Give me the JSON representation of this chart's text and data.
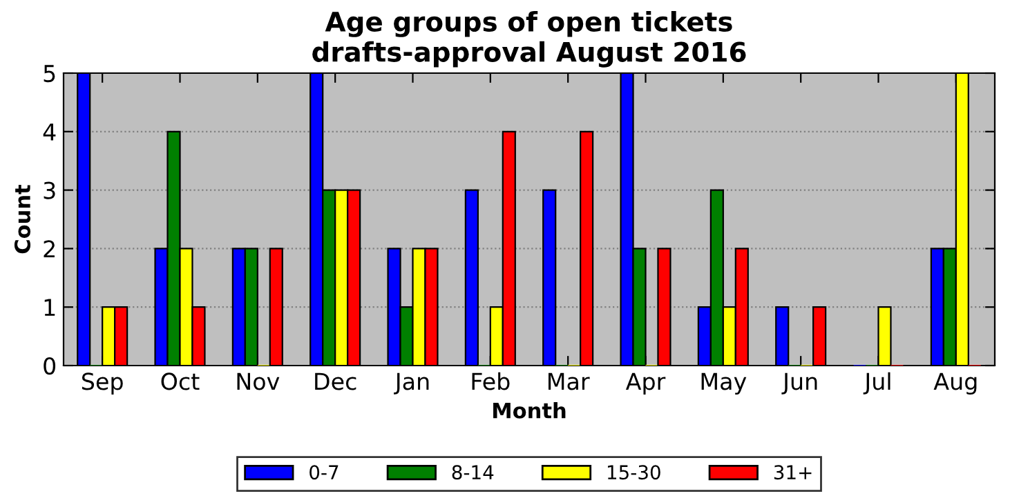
{
  "chart_data": {
    "type": "bar",
    "title": "Age groups of open tickets\ndrafts-approval August 2016",
    "xlabel": "Month",
    "ylabel": "Count",
    "categories": [
      "Sep",
      "Oct",
      "Nov",
      "Dec",
      "Jan",
      "Feb",
      "Mar",
      "Apr",
      "May",
      "Jun",
      "Jul",
      "Aug"
    ],
    "series": [
      {
        "name": "0-7",
        "color": "#0000ff",
        "values": [
          5,
          2,
          2,
          5,
          2,
          3,
          3,
          5,
          1,
          1,
          0,
          2
        ]
      },
      {
        "name": "8-14",
        "color": "#008000",
        "values": [
          0,
          4,
          2,
          3,
          1,
          0,
          0,
          2,
          3,
          0,
          0,
          2
        ]
      },
      {
        "name": "15-30",
        "color": "#ffff00",
        "values": [
          1,
          2,
          0,
          3,
          2,
          1,
          0,
          0,
          1,
          0,
          1,
          5
        ]
      },
      {
        "name": "31+",
        "color": "#ff0000",
        "values": [
          1,
          1,
          2,
          3,
          2,
          4,
          4,
          2,
          2,
          1,
          0,
          0
        ]
      }
    ],
    "ylim": [
      0,
      5
    ],
    "yticks": [
      0,
      1,
      2,
      3,
      4,
      5
    ],
    "grid": "y",
    "legend": "bottom"
  }
}
